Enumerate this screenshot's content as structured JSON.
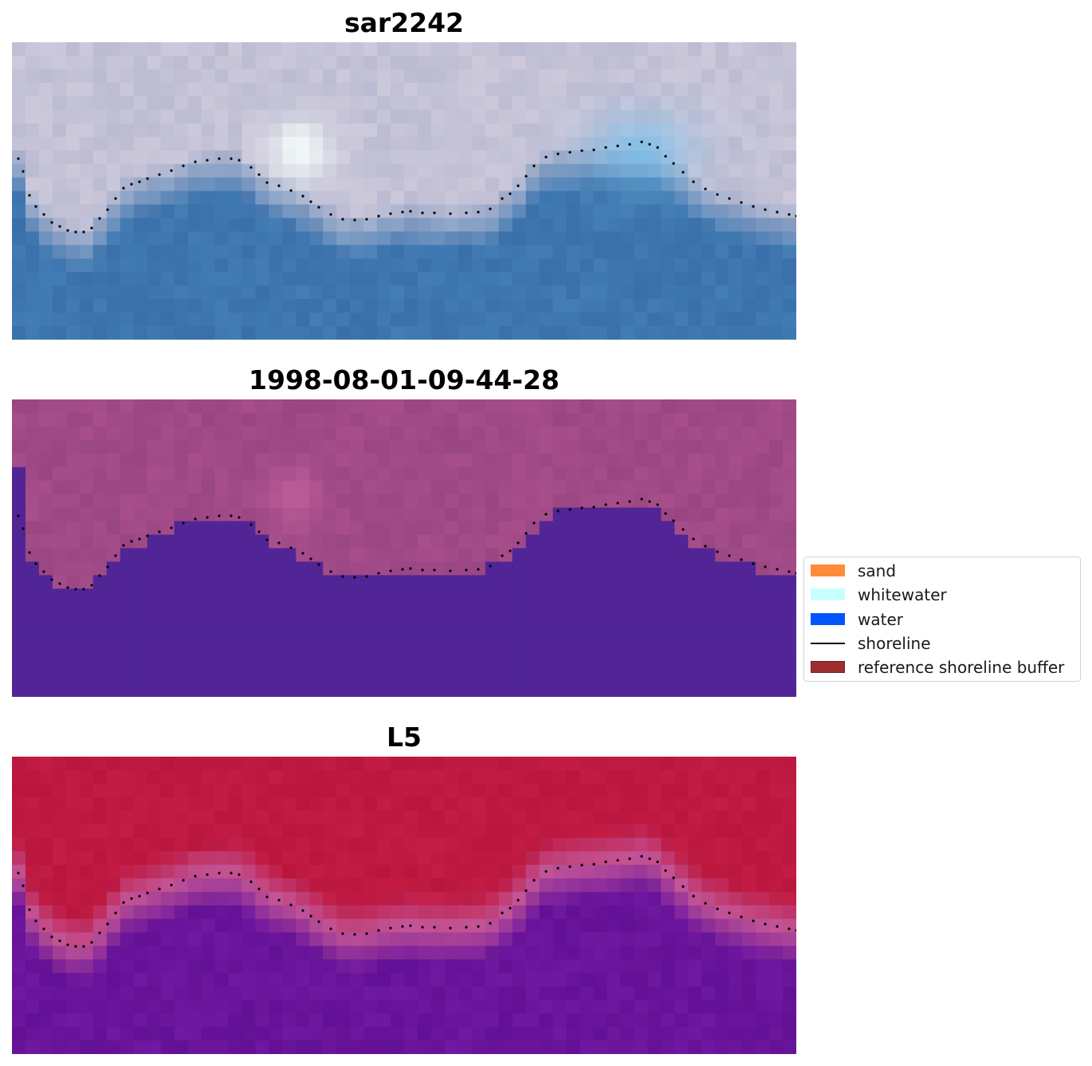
{
  "panels": [
    {
      "title": "sar2242",
      "style": "sar"
    },
    {
      "title": "1998-08-01-09-44-28",
      "style": "classified"
    },
    {
      "title": "L5",
      "style": "l5"
    }
  ],
  "legend": {
    "items": [
      {
        "label": "sand",
        "kind": "patch",
        "color": "#ff8c3a"
      },
      {
        "label": "whitewater",
        "kind": "patch",
        "color": "#c8fffc"
      },
      {
        "label": "water",
        "kind": "patch",
        "color": "#0055ff"
      },
      {
        "label": "shoreline",
        "kind": "line",
        "color": "#000000"
      },
      {
        "label": "reference shoreline buffer",
        "kind": "patch",
        "color": "#9e2e2e",
        "edge": "#7a1f1f"
      }
    ]
  }
}
